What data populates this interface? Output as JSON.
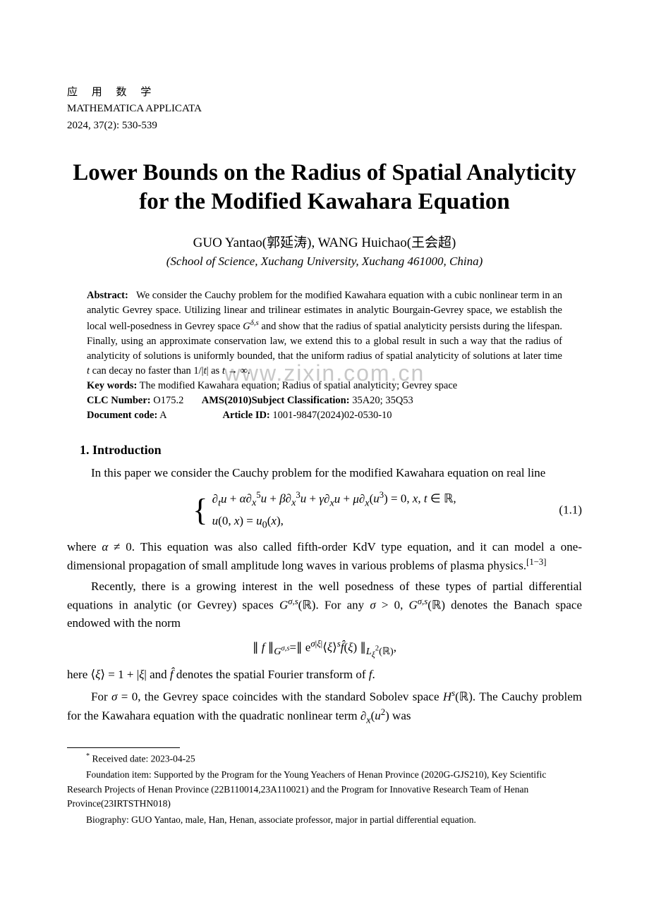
{
  "journal": {
    "cn_name": "应 用 数 学",
    "en_name": "MATHEMATICA APPLICATA",
    "issue": "2024, 37(2): 530-539"
  },
  "title": "Lower Bounds on the Radius of Spatial Analyticity for the Modified Kawahara Equation",
  "authors": "GUO Yantao(郭延涛), WANG Huichao(王会超)",
  "affiliation": "(School of Science, Xuchang University, Xuchang 461000, China)",
  "abstract": {
    "label": "Abstract:",
    "text": "We consider the Cauchy problem for the modified Kawahara equation with a cubic nonlinear term in an analytic Gevrey space. Utilizing linear and trilinear estimates in analytic Bourgain-Gevrey space, we establish the local well-posedness in Gevrey space Gδ,s and show that the radius of spatial analyticity persists during the lifespan. Finally, using an approximate conservation law, we extend this to a global result in such a way that the radius of analyticity of solutions is uniformly bounded, that the uniform radius of spatial analyticity of solutions at later time t can decay no faster than 1/|t| as t → ∞."
  },
  "keywords": {
    "label": "Key words:",
    "text": "The modified Kawahara equation; Radius of spatial analyticity; Gevrey space"
  },
  "clc": {
    "label": "CLC Number:",
    "value": "O175.2"
  },
  "ams": {
    "label": "AMS(2010)Subject Classification:",
    "value": "35A20; 35Q53"
  },
  "doccode": {
    "label": "Document code:",
    "value": "A"
  },
  "articleid": {
    "label": "Article ID:",
    "value": "1001-9847(2024)02-0530-10"
  },
  "watermark": "www.zixin.com.cn",
  "section1": {
    "heading": "1. Introduction",
    "p1": "In this paper we consider the Cauchy problem for the modified Kawahara equation on real line",
    "eq1_line1": "∂ₜu + α∂ₓ⁵u + β∂ₓ³u + γ∂ₓu + μ∂ₓ(u³) = 0, x, t ∈ ℝ,",
    "eq1_line2": "u(0, x) = u₀(x),",
    "eq1_num": "(1.1)",
    "p2_a": "where α ≠ 0. This equation was also called fifth-order KdV type equation, and it can model a one-dimensional propagation of small amplitude long waves in various problems of plasma physics.",
    "p2_ref": "[1−3]",
    "p3": "Recently, there is a growing interest in the well posedness of these types of partial differential equations in analytic (or Gevrey) spaces Gσ,s(ℝ). For any σ > 0, Gσ,s(ℝ) denotes the Banach space endowed with the norm",
    "eq2": "∥ f ∥_{Gσ,s} = ∥ e^{σ|ξ|}⟨ξ⟩^s f̂(ξ) ∥_{L²_ξ(ℝ)},",
    "p4": "here ⟨ξ⟩ = 1 + |ξ| and f̂ denotes the spatial Fourier transform of f.",
    "p5": "For σ = 0, the Gevrey space coincides with the standard Sobolev space Hˢ(ℝ). The Cauchy problem for the Kawahara equation with the quadratic nonlinear term ∂ₓ(u²) was"
  },
  "footnotes": {
    "received": "Received date: 2023-04-25",
    "foundation": "Foundation item: Supported by the Program for the Young Yeachers of Henan Province (2020G-GJS210), Key Scientific Research Projects of Henan Province (22B110014,23A110021) and the Program for Innovative Research Team of Henan Province(23IRTSTHN018)",
    "bio": "Biography: GUO Yantao, male, Han, Henan, associate professor, major in partial differential equation."
  },
  "colors": {
    "text": "#000000",
    "background": "#ffffff",
    "watermark": "#c8c8c8"
  },
  "typography": {
    "body_fontsize_pt": 12,
    "title_fontsize_pt": 24,
    "abstract_fontsize_pt": 10,
    "font_family": "Times New Roman, serif"
  }
}
